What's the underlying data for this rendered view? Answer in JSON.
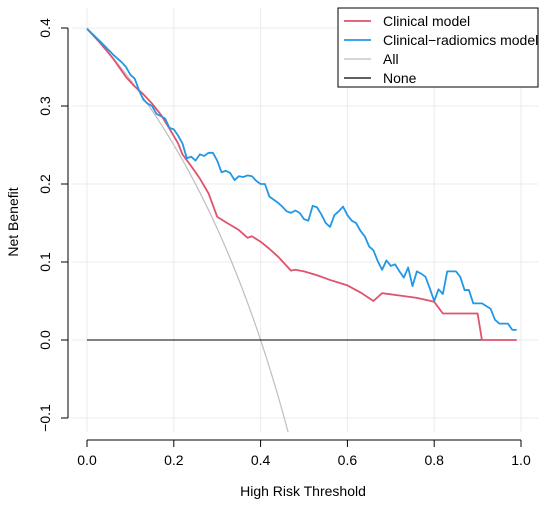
{
  "chart_data": {
    "type": "line",
    "title": "",
    "xlabel": "High Risk Threshold",
    "ylabel": "Net Benefit",
    "xlim": [
      0,
      1
    ],
    "ylim": [
      -0.1,
      0.4
    ],
    "x_ticks": [
      0.0,
      0.2,
      0.4,
      0.6,
      0.8,
      1.0
    ],
    "x_tick_labels": [
      "0.0",
      "0.2",
      "0.4",
      "0.6",
      "0.8",
      "1.0"
    ],
    "y_ticks": [
      -0.1,
      0.0,
      0.1,
      0.2,
      0.3,
      0.4
    ],
    "y_tick_labels": [
      "−0.1",
      "0.0",
      "0.1",
      "0.2",
      "0.3",
      "0.4"
    ],
    "grid": true,
    "legend_position": "top-right",
    "series": [
      {
        "name": "Clinical model",
        "color": "#df536b",
        "points": [
          [
            0.0,
            0.399
          ],
          [
            0.03,
            0.381
          ],
          [
            0.06,
            0.361
          ],
          [
            0.09,
            0.337
          ],
          [
            0.11,
            0.325
          ],
          [
            0.13,
            0.315
          ],
          [
            0.15,
            0.303
          ],
          [
            0.17,
            0.289
          ],
          [
            0.19,
            0.271
          ],
          [
            0.21,
            0.252
          ],
          [
            0.22,
            0.238
          ],
          [
            0.24,
            0.223
          ],
          [
            0.26,
            0.207
          ],
          [
            0.28,
            0.188
          ],
          [
            0.3,
            0.158
          ],
          [
            0.32,
            0.151
          ],
          [
            0.35,
            0.141
          ],
          [
            0.37,
            0.131
          ],
          [
            0.38,
            0.133
          ],
          [
            0.4,
            0.126
          ],
          [
            0.42,
            0.117
          ],
          [
            0.44,
            0.107
          ],
          [
            0.47,
            0.089
          ],
          [
            0.48,
            0.09
          ],
          [
            0.5,
            0.088
          ],
          [
            0.53,
            0.083
          ],
          [
            0.56,
            0.077
          ],
          [
            0.6,
            0.07
          ],
          [
            0.63,
            0.061
          ],
          [
            0.66,
            0.05
          ],
          [
            0.68,
            0.06
          ],
          [
            0.72,
            0.057
          ],
          [
            0.76,
            0.054
          ],
          [
            0.8,
            0.049
          ],
          [
            0.82,
            0.034
          ],
          [
            0.85,
            0.034
          ],
          [
            0.87,
            0.034
          ],
          [
            0.9,
            0.034
          ],
          [
            0.91,
            0.0
          ],
          [
            0.95,
            0.0
          ],
          [
            0.99,
            0.0
          ]
        ]
      },
      {
        "name": "Clinical−radiomics model",
        "color": "#2297e6",
        "points": [
          [
            0.0,
            0.399
          ],
          [
            0.03,
            0.383
          ],
          [
            0.06,
            0.366
          ],
          [
            0.08,
            0.356
          ],
          [
            0.09,
            0.35
          ],
          [
            0.1,
            0.34
          ],
          [
            0.11,
            0.335
          ],
          [
            0.12,
            0.32
          ],
          [
            0.13,
            0.308
          ],
          [
            0.14,
            0.303
          ],
          [
            0.15,
            0.3
          ],
          [
            0.16,
            0.29
          ],
          [
            0.17,
            0.287
          ],
          [
            0.18,
            0.284
          ],
          [
            0.19,
            0.272
          ],
          [
            0.2,
            0.27
          ],
          [
            0.21,
            0.262
          ],
          [
            0.22,
            0.252
          ],
          [
            0.23,
            0.233
          ],
          [
            0.24,
            0.235
          ],
          [
            0.25,
            0.23
          ],
          [
            0.26,
            0.238
          ],
          [
            0.27,
            0.236
          ],
          [
            0.28,
            0.24
          ],
          [
            0.29,
            0.24
          ],
          [
            0.3,
            0.23
          ],
          [
            0.31,
            0.215
          ],
          [
            0.32,
            0.217
          ],
          [
            0.33,
            0.214
          ],
          [
            0.34,
            0.205
          ],
          [
            0.35,
            0.21
          ],
          [
            0.36,
            0.209
          ],
          [
            0.37,
            0.211
          ],
          [
            0.38,
            0.21
          ],
          [
            0.39,
            0.204
          ],
          [
            0.4,
            0.2
          ],
          [
            0.41,
            0.2
          ],
          [
            0.42,
            0.184
          ],
          [
            0.43,
            0.18
          ],
          [
            0.44,
            0.176
          ],
          [
            0.45,
            0.171
          ],
          [
            0.46,
            0.165
          ],
          [
            0.47,
            0.163
          ],
          [
            0.48,
            0.166
          ],
          [
            0.49,
            0.163
          ],
          [
            0.5,
            0.155
          ],
          [
            0.51,
            0.153
          ],
          [
            0.52,
            0.172
          ],
          [
            0.53,
            0.17
          ],
          [
            0.54,
            0.161
          ],
          [
            0.55,
            0.15
          ],
          [
            0.56,
            0.145
          ],
          [
            0.57,
            0.16
          ],
          [
            0.58,
            0.165
          ],
          [
            0.59,
            0.171
          ],
          [
            0.6,
            0.16
          ],
          [
            0.61,
            0.153
          ],
          [
            0.62,
            0.15
          ],
          [
            0.63,
            0.14
          ],
          [
            0.64,
            0.133
          ],
          [
            0.65,
            0.12
          ],
          [
            0.66,
            0.115
          ],
          [
            0.67,
            0.101
          ],
          [
            0.68,
            0.09
          ],
          [
            0.69,
            0.102
          ],
          [
            0.7,
            0.095
          ],
          [
            0.71,
            0.097
          ],
          [
            0.72,
            0.088
          ],
          [
            0.73,
            0.08
          ],
          [
            0.74,
            0.093
          ],
          [
            0.75,
            0.069
          ],
          [
            0.76,
            0.088
          ],
          [
            0.77,
            0.085
          ],
          [
            0.78,
            0.081
          ],
          [
            0.79,
            0.066
          ],
          [
            0.8,
            0.05
          ],
          [
            0.81,
            0.065
          ],
          [
            0.82,
            0.059
          ],
          [
            0.83,
            0.088
          ],
          [
            0.85,
            0.088
          ],
          [
            0.86,
            0.081
          ],
          [
            0.87,
            0.064
          ],
          [
            0.88,
            0.064
          ],
          [
            0.89,
            0.047
          ],
          [
            0.91,
            0.047
          ],
          [
            0.93,
            0.04
          ],
          [
            0.94,
            0.026
          ],
          [
            0.95,
            0.021
          ],
          [
            0.96,
            0.021
          ],
          [
            0.97,
            0.021
          ],
          [
            0.98,
            0.013
          ],
          [
            0.99,
            0.013
          ]
        ]
      },
      {
        "name": "All",
        "color": "#bebebe",
        "formula": "prevalence_minus_harm",
        "prevalence": 0.4
      },
      {
        "name": "None",
        "color": "#000000",
        "constant": 0
      }
    ]
  }
}
